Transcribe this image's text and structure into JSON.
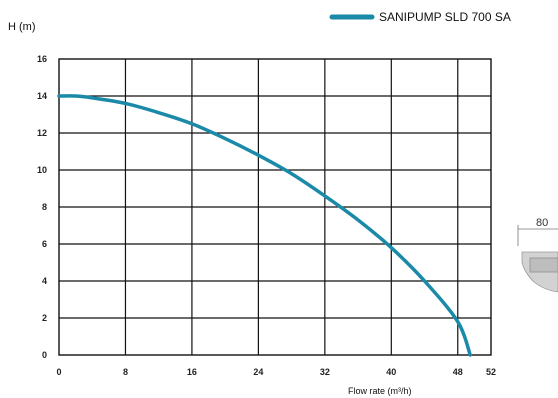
{
  "chart_data": {
    "type": "line",
    "title": "",
    "ylabel": "H (m)",
    "xlabel": "Flow rate (m³/h)",
    "xlim": [
      0,
      52
    ],
    "ylim": [
      0,
      16
    ],
    "x_ticks": [
      0,
      8,
      16,
      24,
      32,
      40,
      48,
      52
    ],
    "x_tick_labels": [
      "0",
      "8",
      "16",
      "24",
      "32",
      "40",
      "48",
      "52"
    ],
    "y_ticks": [
      0,
      2,
      4,
      6,
      8,
      10,
      12,
      14,
      16
    ],
    "y_tick_labels": [
      "0",
      "2",
      "4",
      "6",
      "8",
      "10",
      "12",
      "14",
      "16"
    ],
    "grid": true,
    "legend_position": "top-right",
    "series": [
      {
        "name": "SANIPUMP SLD 700 SA",
        "color": "#1a8aa8",
        "x": [
          0,
          2,
          4,
          8,
          12,
          16,
          20,
          24,
          28,
          32,
          36,
          40,
          44,
          48,
          49.5
        ],
        "y": [
          14,
          14,
          13.9,
          13.6,
          13.1,
          12.5,
          11.7,
          10.8,
          9.8,
          8.6,
          7.3,
          5.8,
          4.0,
          1.8,
          0
        ]
      }
    ]
  },
  "product_image": {
    "dimension_label": "80"
  }
}
